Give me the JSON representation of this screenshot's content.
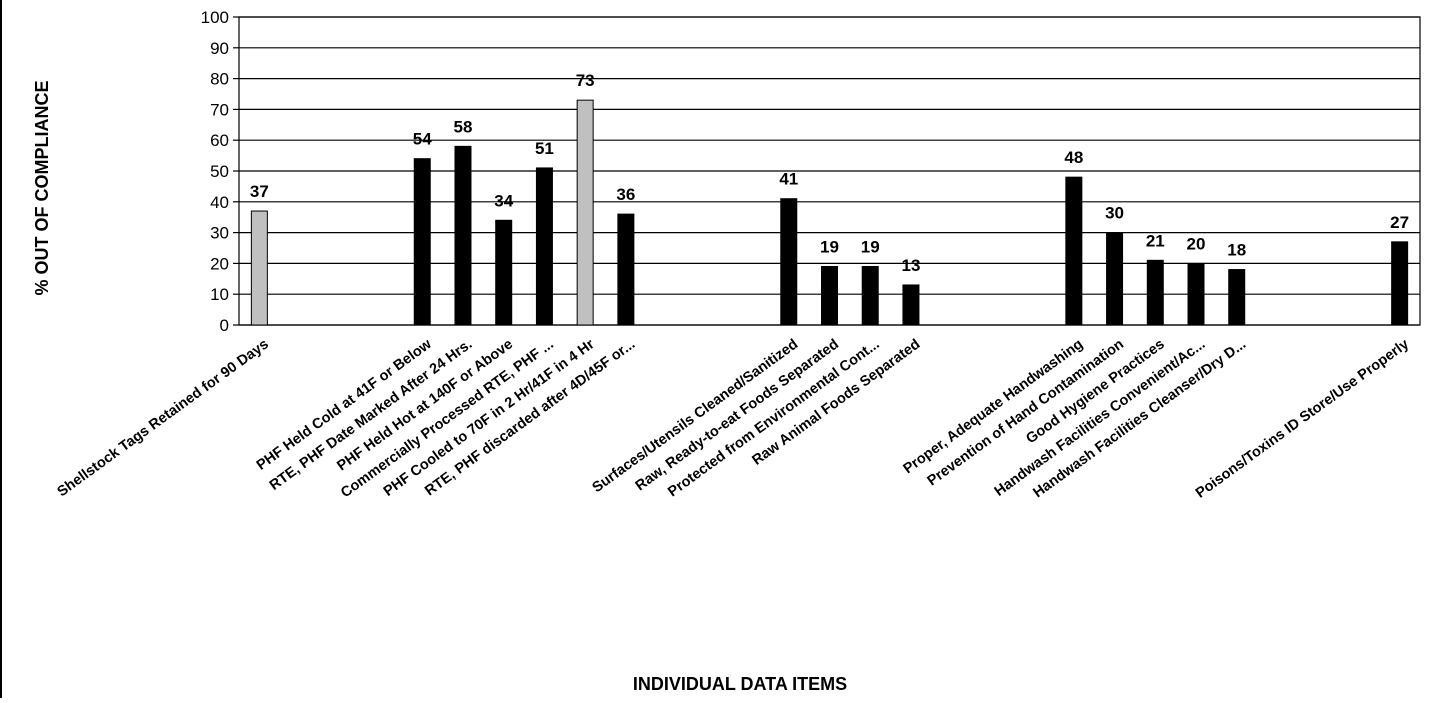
{
  "chart_data": {
    "type": "bar",
    "xlabel": "INDIVIDUAL DATA ITEMS",
    "ylabel": "% OUT OF COMPLIANCE",
    "ylim": [
      0,
      100
    ],
    "yticks": [
      0,
      10,
      20,
      30,
      40,
      50,
      60,
      70,
      80,
      90,
      100
    ],
    "grid": true,
    "colors": {
      "black": "#000000",
      "gray": "#c0c0c0"
    },
    "categories": [
      "Shellstock Tags Retained for 90 Days",
      "",
      "",
      "",
      "PHF Held Cold at 41F or Below",
      "RTE, PHF Date Marked After 24 Hrs.",
      "PHF Held Hot at 140F or Above",
      "Commercially Processed RTE, PHF ...",
      "PHF Cooled to 70F in 2 Hr/41F in 4 Hr",
      "RTE, PHF discarded after 4D/45F or...",
      "",
      "",
      "",
      "Surfaces/Utensils Cleaned/Sanitized",
      "Raw, Ready-to-eat Foods Separated",
      "Protected from Environmental Cont...",
      "Raw Animal Foods Separated",
      "",
      "",
      "",
      "Proper, Adequate Handwashing",
      "Prevention of Hand Contamination",
      "Good Hygiene Practices",
      "Handwash Facilities Convenient/Ac...",
      "Handwash Facilities Cleanser/Dry D...",
      "",
      "",
      "",
      "Poisons/Toxins ID Store/Use Properly"
    ],
    "values": [
      37,
      null,
      null,
      null,
      54,
      58,
      34,
      51,
      73,
      36,
      null,
      null,
      null,
      41,
      19,
      19,
      13,
      null,
      null,
      null,
      48,
      30,
      21,
      20,
      18,
      null,
      null,
      null,
      27
    ],
    "bar_colors": [
      "gray",
      null,
      null,
      null,
      "black",
      "black",
      "black",
      "black",
      "gray",
      "black",
      null,
      null,
      null,
      "black",
      "black",
      "black",
      "black",
      null,
      null,
      null,
      "black",
      "black",
      "black",
      "black",
      "black",
      null,
      null,
      null,
      "black"
    ],
    "data_labels": [
      "37",
      "",
      "",
      "",
      "54",
      "58",
      "34",
      "51",
      "73",
      "36",
      "",
      "",
      "",
      "41",
      "19",
      "19",
      "13",
      "",
      "",
      "",
      "48",
      "30",
      "21",
      "20",
      "18",
      "",
      "",
      "",
      "27"
    ]
  }
}
